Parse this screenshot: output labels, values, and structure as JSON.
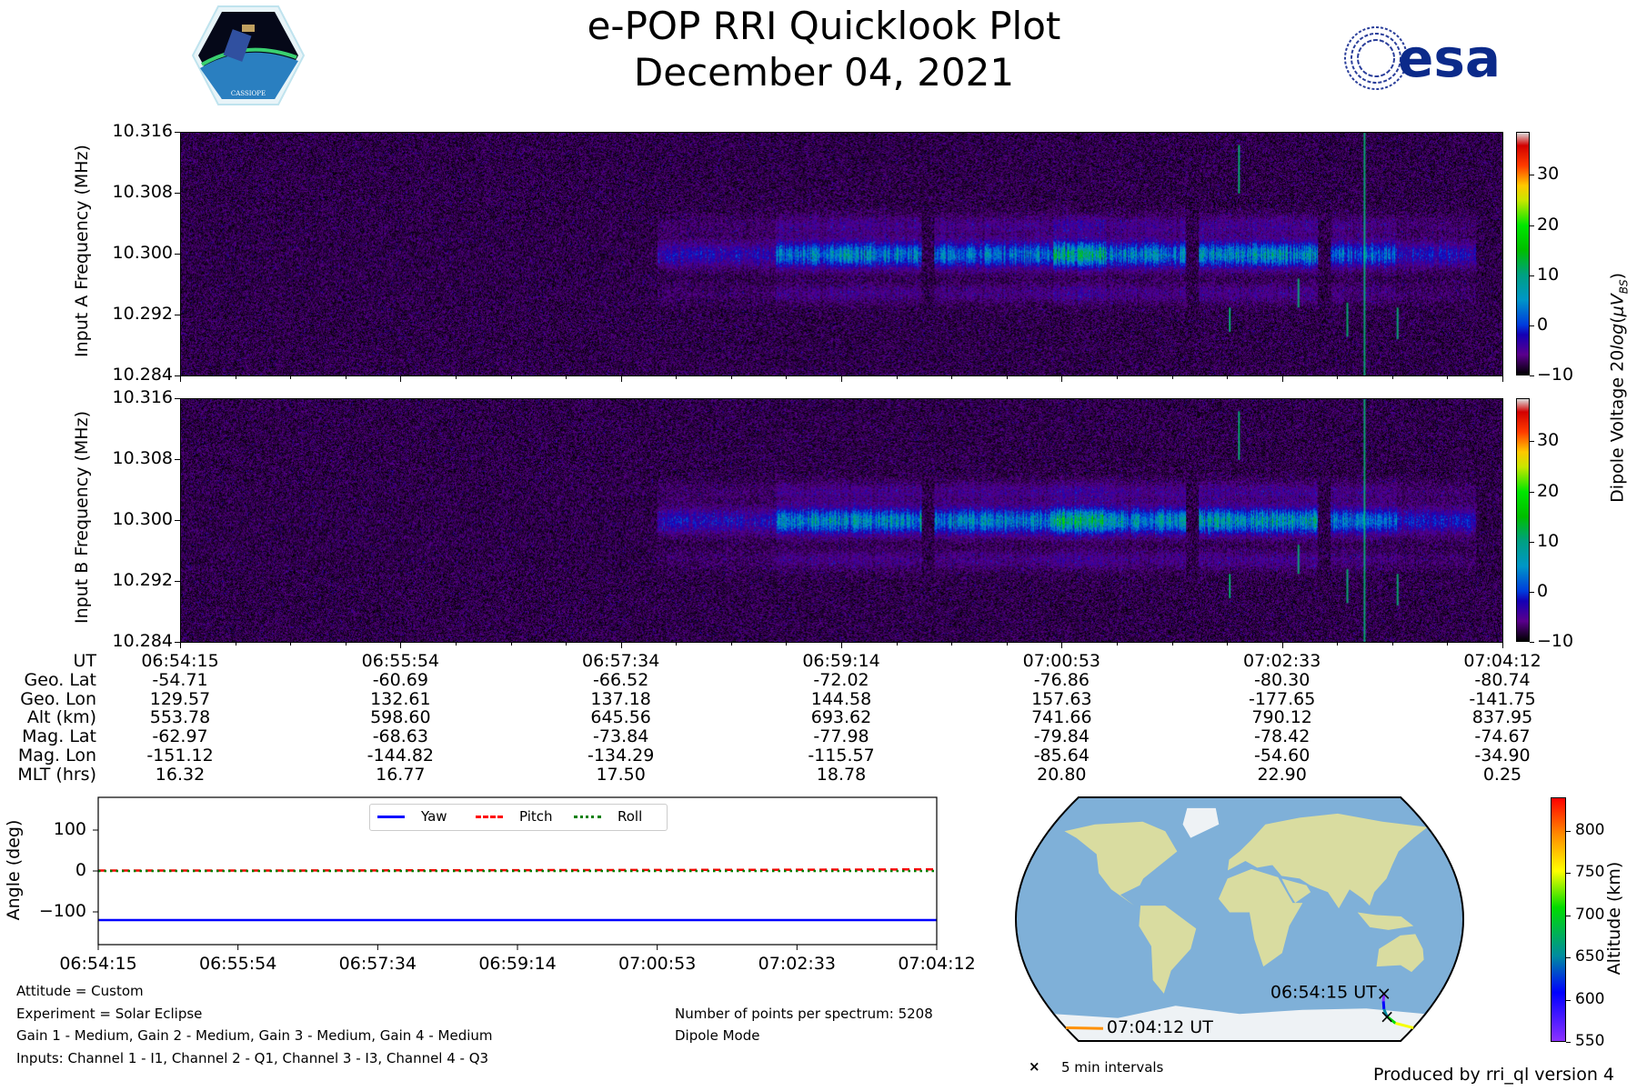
{
  "header": {
    "title": "e-POP RRI Quicklook Plot",
    "date": "December 04, 2021",
    "left_logo_text": "CASSIOPE",
    "right_logo_text": "esa"
  },
  "chart_data": [
    {
      "type": "heatmap",
      "name": "Input A spectrogram",
      "ylabel": "Input A Frequency (MHz)",
      "yticks": [
        "10.316",
        "10.308",
        "10.300",
        "10.292",
        "10.284"
      ],
      "ylim": [
        10.284,
        10.316
      ],
      "xlim": [
        "06:54:15",
        "07:04:12"
      ],
      "colorbar": {
        "label": "Dipole Voltage 20log(μV_BS)",
        "ticks": [
          "30",
          "20",
          "10",
          "0",
          "−10"
        ],
        "range": [
          -10,
          38.6
        ],
        "colormap": "nipy_spectral"
      },
      "activity_band_mhz": 10.3,
      "peak_value_approx": 15
    },
    {
      "type": "heatmap",
      "name": "Input B spectrogram",
      "ylabel": "Input B Frequency (MHz)",
      "yticks": [
        "10.316",
        "10.308",
        "10.300",
        "10.292",
        "10.284"
      ],
      "ylim": [
        10.284,
        10.316
      ],
      "xlim": [
        "06:54:15",
        "07:04:12"
      ],
      "colorbar": {
        "ticks": [
          "30",
          "20",
          "10",
          "0",
          "−10"
        ],
        "range": [
          -10,
          38.6
        ]
      },
      "activity_band_mhz": 10.3,
      "peak_value_approx": 18
    },
    {
      "type": "table",
      "name": "Ephemeris",
      "row_labels": [
        "UT",
        "Geo. Lat",
        "Geo. Lon",
        "Alt (km)",
        "Mag. Lat",
        "Mag. Lon",
        "MLT (hrs)"
      ],
      "columns": [
        [
          "06:54:15",
          "-54.71",
          "129.57",
          "553.78",
          "-62.97",
          "-151.12",
          "16.32"
        ],
        [
          "06:55:54",
          "-60.69",
          "132.61",
          "598.60",
          "-68.63",
          "-144.82",
          "16.77"
        ],
        [
          "06:57:34",
          "-66.52",
          "137.18",
          "645.56",
          "-73.84",
          "-134.29",
          "17.50"
        ],
        [
          "06:59:14",
          "-72.02",
          "144.58",
          "693.62",
          "-77.98",
          "-115.57",
          "18.78"
        ],
        [
          "07:00:53",
          "-76.86",
          "157.63",
          "741.66",
          "-79.84",
          "-85.64",
          "20.80"
        ],
        [
          "07:02:33",
          "-80.30",
          "-177.65",
          "790.12",
          "-78.42",
          "-54.60",
          "22.90"
        ],
        [
          "07:04:12",
          "-80.74",
          "-141.75",
          "837.95",
          "-74.67",
          "-34.90",
          "0.25"
        ]
      ]
    },
    {
      "type": "line",
      "name": "Attitude",
      "ylabel": "Angle (deg)",
      "ylim": [
        -180,
        180
      ],
      "yticks": [
        "100",
        "0",
        "−100"
      ],
      "xticks": [
        "06:54:15",
        "06:55:54",
        "06:57:34",
        "06:59:14",
        "07:00:53",
        "07:02:33",
        "07:04:12"
      ],
      "legend": "top-center",
      "series": [
        {
          "name": "Yaw",
          "color": "#0000ff",
          "style": "solid",
          "values": [
            -120,
            -120,
            -120,
            -120,
            -120,
            -120,
            -120
          ]
        },
        {
          "name": "Pitch",
          "color": "#ff0000",
          "style": "dashed",
          "values": [
            1,
            1,
            1.5,
            2,
            2.5,
            3,
            4
          ]
        },
        {
          "name": "Roll",
          "color": "#008000",
          "style": "dotted",
          "values": [
            0,
            0,
            0,
            0,
            0,
            0,
            0
          ]
        }
      ]
    },
    {
      "type": "scatter",
      "name": "Ground track map",
      "track": {
        "lon": [
          129.57,
          132.61,
          137.18,
          144.58,
          157.63,
          -177.65,
          -141.75
        ],
        "lat": [
          -54.71,
          -60.69,
          -66.52,
          -72.02,
          -76.86,
          -80.3,
          -80.74
        ],
        "alt": [
          553.78,
          598.6,
          645.56,
          693.62,
          741.66,
          790.12,
          837.95
        ]
      },
      "start_label": "06:54:15 UT",
      "end_label": "07:04:12 UT",
      "colorbar": {
        "label": "Altitude (km)",
        "ticks": [
          "800",
          "750",
          "700",
          "650",
          "600",
          "550"
        ],
        "range": [
          550,
          840
        ]
      },
      "legend": {
        "marker": "×",
        "label": "5 min intervals"
      }
    }
  ],
  "footer": {
    "attitude": "Attitude = Custom",
    "experiment": "Experiment = Solar Eclipse",
    "gains": "Gain 1 - Medium, Gain 2 - Medium, Gain 3 - Medium, Gain 4 - Medium",
    "inputs": "Inputs: Channel 1 - I1, Channel 2 - Q1, Channel 3 - I3, Channel 4 - Q3",
    "points": "Number of points per spectrum: 5208",
    "mode": "Dipole Mode",
    "produced": "Produced by rri_ql version 4"
  }
}
